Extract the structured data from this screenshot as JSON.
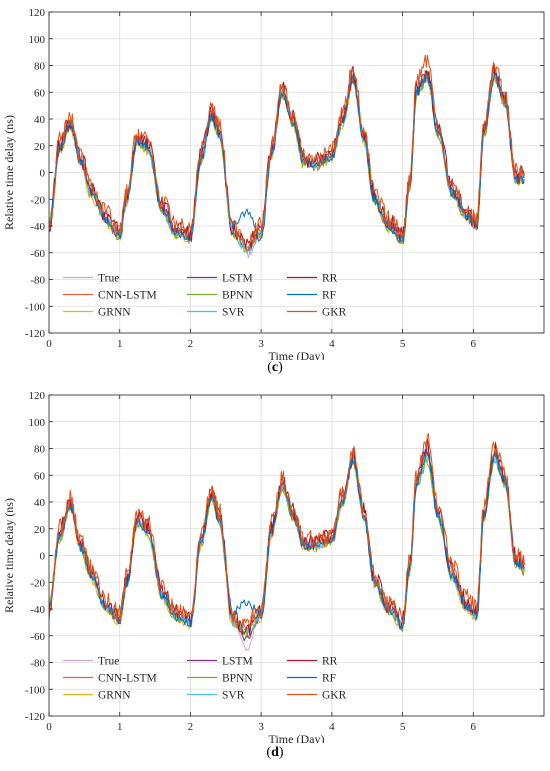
{
  "legend_series": [
    {
      "name": "True",
      "color": "#C9A6E8"
    },
    {
      "name": "CNN-LSTM",
      "color": "#E7603A"
    },
    {
      "name": "GRNN",
      "color": "#EDB120"
    },
    {
      "name": "LSTM",
      "color": "#7E2F8E"
    },
    {
      "name": "BPNN",
      "color": "#77AC30"
    },
    {
      "name": "SVR",
      "color": "#4DBEEE"
    },
    {
      "name": "RR",
      "color": "#A2142F"
    },
    {
      "name": "RF",
      "color": "#0072BD"
    },
    {
      "name": "GKR",
      "color": "#D95319"
    }
  ],
  "chart_data": [
    {
      "panel": "c",
      "type": "line",
      "xlabel": "Time (Day)",
      "ylabel": "Relative time delay (ns)",
      "xlim": [
        0,
        7
      ],
      "ylim": [
        -120,
        120
      ],
      "xticks": [
        "0",
        "1",
        "2",
        "3",
        "4",
        "5",
        "6"
      ],
      "yticks": [
        "-120",
        "-100",
        "-80",
        "-60",
        "-40",
        "-20",
        "0",
        "20",
        "40",
        "60",
        "80",
        "100",
        "120"
      ],
      "grid": true,
      "legend_position": "bottom-left, 3 columns",
      "x": [
        0,
        0.15,
        0.3,
        0.45,
        0.6,
        0.8,
        1.0,
        1.1,
        1.25,
        1.4,
        1.6,
        1.8,
        2.0,
        2.15,
        2.3,
        2.4,
        2.6,
        2.8,
        3.0,
        3.15,
        3.3,
        3.45,
        3.6,
        3.8,
        4.0,
        4.15,
        4.3,
        4.45,
        4.6,
        4.8,
        5.0,
        5.1,
        5.2,
        5.35,
        5.5,
        5.7,
        5.9,
        6.05,
        6.15,
        6.3,
        6.45,
        6.6,
        6.72
      ],
      "series": [
        {
          "name": "True",
          "values": [
            -38,
            18,
            36,
            8,
            -15,
            -35,
            -47,
            -20,
            24,
            18,
            -28,
            -45,
            -48,
            10,
            42,
            30,
            -45,
            -62,
            -48,
            15,
            60,
            38,
            8,
            6,
            12,
            38,
            70,
            25,
            -20,
            -40,
            -50,
            -10,
            60,
            72,
            30,
            -15,
            -32,
            -40,
            30,
            72,
            52,
            -5,
            -5
          ]
        },
        {
          "name": "CNN-LSTM",
          "values": [
            -40,
            20,
            38,
            10,
            -12,
            -33,
            -45,
            -18,
            26,
            20,
            -25,
            -43,
            -47,
            12,
            44,
            32,
            -42,
            -55,
            -42,
            17,
            62,
            40,
            10,
            8,
            14,
            40,
            72,
            28,
            -18,
            -38,
            -48,
            -8,
            62,
            74,
            32,
            -12,
            -30,
            -38,
            32,
            74,
            54,
            -3,
            -3
          ]
        },
        {
          "name": "GRNN",
          "values": [
            -36,
            16,
            34,
            6,
            -18,
            -38,
            -50,
            -22,
            22,
            16,
            -30,
            -47,
            -50,
            8,
            40,
            28,
            -47,
            -58,
            -46,
            13,
            58,
            36,
            6,
            4,
            10,
            36,
            68,
            23,
            -22,
            -42,
            -52,
            -12,
            58,
            70,
            28,
            -17,
            -34,
            -42,
            28,
            70,
            50,
            -7,
            -7
          ]
        },
        {
          "name": "LSTM",
          "values": [
            -39,
            19,
            37,
            9,
            -14,
            -34,
            -46,
            -19,
            25,
            19,
            -27,
            -44,
            -48,
            11,
            43,
            31,
            -44,
            -56,
            -43,
            16,
            61,
            39,
            9,
            7,
            13,
            39,
            71,
            26,
            -19,
            -39,
            -49,
            -9,
            61,
            73,
            31,
            -14,
            -31,
            -39,
            31,
            73,
            53,
            -4,
            -4
          ]
        },
        {
          "name": "BPNN",
          "values": [
            -37,
            17,
            35,
            7,
            -16,
            -36,
            -48,
            -21,
            23,
            17,
            -29,
            -46,
            -49,
            9,
            41,
            29,
            -46,
            -57,
            -45,
            14,
            59,
            37,
            7,
            5,
            11,
            37,
            69,
            24,
            -21,
            -41,
            -51,
            -11,
            59,
            71,
            29,
            -16,
            -33,
            -41,
            29,
            71,
            51,
            -6,
            -6
          ]
        },
        {
          "name": "SVR",
          "values": [
            -38,
            18,
            36,
            8,
            -15,
            -35,
            -47,
            -20,
            24,
            18,
            -28,
            -45,
            -48,
            10,
            42,
            30,
            -45,
            -58,
            -46,
            15,
            60,
            38,
            8,
            6,
            12,
            38,
            70,
            25,
            -20,
            -40,
            -50,
            -10,
            60,
            72,
            30,
            -15,
            -32,
            -40,
            30,
            72,
            52,
            -5,
            -5
          ]
        },
        {
          "name": "RR",
          "values": [
            -41,
            21,
            39,
            11,
            -11,
            -32,
            -44,
            -17,
            27,
            21,
            -24,
            -42,
            -46,
            13,
            45,
            33,
            -41,
            -54,
            -41,
            18,
            63,
            41,
            11,
            9,
            15,
            41,
            73,
            29,
            -17,
            -37,
            -47,
            -7,
            63,
            75,
            33,
            -11,
            -29,
            -37,
            33,
            75,
            55,
            -2,
            -2
          ]
        },
        {
          "name": "RF",
          "values": [
            -38,
            18,
            36,
            8,
            -15,
            -35,
            -47,
            -20,
            24,
            18,
            -28,
            -45,
            -48,
            10,
            42,
            30,
            -40,
            -30,
            -50,
            15,
            60,
            38,
            8,
            6,
            12,
            38,
            70,
            25,
            -20,
            -40,
            -50,
            -10,
            60,
            72,
            30,
            -15,
            -32,
            -40,
            30,
            72,
            52,
            -5,
            -5
          ]
        },
        {
          "name": "GKR",
          "values": [
            -42,
            24,
            40,
            12,
            -10,
            -30,
            -45,
            -15,
            30,
            24,
            -22,
            -40,
            -44,
            16,
            48,
            36,
            -40,
            -52,
            -40,
            20,
            64,
            42,
            12,
            10,
            16,
            44,
            80,
            30,
            -15,
            -35,
            -45,
            -5,
            70,
            85,
            34,
            -10,
            -28,
            -36,
            36,
            78,
            56,
            0,
            0
          ]
        }
      ]
    },
    {
      "panel": "d",
      "type": "line",
      "xlabel": "Time (Day)",
      "ylabel": "Relative time delay (ns)",
      "xlim": [
        0,
        7
      ],
      "ylim": [
        -120,
        120
      ],
      "xticks": [
        "0",
        "1",
        "2",
        "3",
        "4",
        "5",
        "6"
      ],
      "yticks": [
        "-120",
        "-100",
        "-80",
        "-60",
        "-40",
        "-20",
        "0",
        "20",
        "40",
        "60",
        "80",
        "100",
        "120"
      ],
      "grid": true,
      "legend_position": "bottom-left, 3 columns",
      "x": [
        0,
        0.15,
        0.3,
        0.45,
        0.6,
        0.8,
        1.0,
        1.1,
        1.25,
        1.4,
        1.6,
        1.8,
        2.0,
        2.15,
        2.3,
        2.4,
        2.6,
        2.8,
        3.0,
        3.15,
        3.3,
        3.45,
        3.6,
        3.8,
        4.0,
        4.15,
        4.3,
        4.45,
        4.6,
        4.8,
        5.0,
        5.1,
        5.2,
        5.35,
        5.5,
        5.7,
        5.9,
        6.05,
        6.15,
        6.3,
        6.45,
        6.6,
        6.72
      ],
      "series": [
        {
          "name": "True",
          "values": [
            -38,
            14,
            38,
            6,
            -15,
            -38,
            -48,
            -20,
            26,
            18,
            -30,
            -46,
            -50,
            10,
            44,
            28,
            -50,
            -70,
            -45,
            18,
            52,
            30,
            8,
            8,
            12,
            40,
            72,
            30,
            -20,
            -40,
            -52,
            -10,
            54,
            76,
            30,
            -15,
            -38,
            -45,
            30,
            74,
            55,
            -5,
            -10
          ]
        },
        {
          "name": "CNN-LSTM",
          "values": [
            -40,
            16,
            40,
            8,
            -12,
            -36,
            -46,
            -18,
            28,
            20,
            -28,
            -44,
            -48,
            12,
            46,
            30,
            -48,
            -55,
            -42,
            20,
            54,
            32,
            10,
            10,
            14,
            42,
            74,
            32,
            -18,
            -38,
            -50,
            -8,
            56,
            80,
            32,
            -12,
            -36,
            -43,
            32,
            78,
            57,
            -3,
            -8
          ]
        },
        {
          "name": "GRNN",
          "values": [
            -36,
            12,
            36,
            4,
            -18,
            -40,
            -50,
            -22,
            24,
            16,
            -32,
            -48,
            -52,
            8,
            42,
            26,
            -52,
            -58,
            -47,
            16,
            50,
            28,
            6,
            6,
            10,
            38,
            70,
            28,
            -22,
            -42,
            -54,
            -12,
            52,
            72,
            28,
            -17,
            -40,
            -47,
            28,
            72,
            53,
            -7,
            -12
          ]
        },
        {
          "name": "LSTM",
          "values": [
            -39,
            15,
            39,
            7,
            -14,
            -37,
            -47,
            -19,
            27,
            19,
            -29,
            -45,
            -49,
            11,
            45,
            29,
            -49,
            -62,
            -44,
            19,
            53,
            31,
            9,
            9,
            13,
            41,
            73,
            31,
            -19,
            -39,
            -51,
            -9,
            55,
            78,
            31,
            -14,
            -37,
            -44,
            31,
            75,
            56,
            -4,
            -9
          ]
        },
        {
          "name": "BPNN",
          "values": [
            -37,
            13,
            37,
            5,
            -16,
            -39,
            -49,
            -21,
            25,
            17,
            -31,
            -47,
            -51,
            9,
            43,
            27,
            -51,
            -57,
            -46,
            17,
            51,
            29,
            7,
            7,
            11,
            39,
            71,
            29,
            -21,
            -41,
            -53,
            -11,
            53,
            70,
            29,
            -16,
            -39,
            -46,
            29,
            70,
            54,
            -6,
            -11
          ]
        },
        {
          "name": "SVR",
          "values": [
            -38,
            14,
            38,
            6,
            -15,
            -38,
            -48,
            -20,
            26,
            18,
            -30,
            -46,
            -50,
            10,
            44,
            28,
            -50,
            -56,
            -45,
            18,
            52,
            30,
            8,
            8,
            12,
            40,
            72,
            30,
            -20,
            -40,
            -52,
            -10,
            54,
            74,
            30,
            -15,
            -38,
            -45,
            30,
            73,
            55,
            -5,
            -10
          ]
        },
        {
          "name": "RR",
          "values": [
            -41,
            17,
            41,
            9,
            -11,
            -35,
            -45,
            -17,
            29,
            21,
            -27,
            -43,
            -47,
            13,
            47,
            31,
            -47,
            -54,
            -41,
            21,
            55,
            33,
            11,
            11,
            15,
            43,
            75,
            33,
            -17,
            -37,
            -49,
            -7,
            57,
            81,
            33,
            -11,
            -35,
            -42,
            33,
            79,
            58,
            -2,
            -7
          ]
        },
        {
          "name": "RF",
          "values": [
            -38,
            14,
            38,
            6,
            -15,
            -38,
            -48,
            -20,
            26,
            18,
            -30,
            -46,
            -50,
            10,
            44,
            28,
            -42,
            -35,
            -45,
            18,
            52,
            30,
            8,
            8,
            12,
            40,
            72,
            30,
            -20,
            -40,
            -52,
            -10,
            54,
            76,
            30,
            -15,
            -38,
            -45,
            30,
            74,
            55,
            -5,
            -10
          ]
        },
        {
          "name": "GKR",
          "values": [
            -42,
            20,
            42,
            10,
            -10,
            -34,
            -44,
            -15,
            32,
            24,
            -25,
            -42,
            -46,
            16,
            48,
            34,
            -45,
            -50,
            -40,
            24,
            58,
            34,
            12,
            12,
            16,
            46,
            76,
            34,
            -15,
            -35,
            -47,
            -5,
            60,
            86,
            36,
            -8,
            -30,
            -38,
            36,
            80,
            60,
            0,
            -5
          ]
        }
      ]
    }
  ],
  "panel_labels": {
    "c": "(c)",
    "d": "(d)"
  }
}
